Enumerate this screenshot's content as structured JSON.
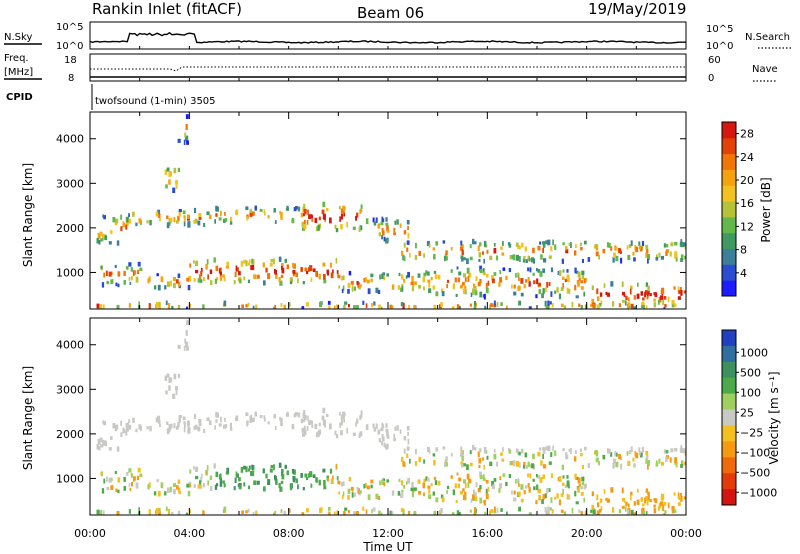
{
  "header": {
    "station": "Rankin Inlet (fitACF)",
    "beam": "Beam 06",
    "date": "19/May/2019"
  },
  "top_panels": {
    "nsky_label": "N.Sky",
    "nsearch_label": "N.Search",
    "exp_top": "10^5",
    "exp_bottom": "10^0",
    "freq_label": "Freq.",
    "mhz_label": "[MHz]",
    "freq_ticks": [
      "18",
      "8"
    ],
    "nave_label": "Nave",
    "nave_ticks": [
      "60",
      "0"
    ],
    "cpid_label": "CPID",
    "cpid_text": "twofsound (1-min) 3505"
  },
  "chart_data": [
    {
      "type": "heatmap",
      "title": "",
      "quantity": "Power",
      "xlabel": "Time UT",
      "ylabel": "Slant Range [km]",
      "x_ticks": [
        "00:00",
        "04:00",
        "08:00",
        "12:00",
        "16:00",
        "20:00",
        "00:00"
      ],
      "xlim_hours": [
        0,
        24
      ],
      "y_ticks": [
        1000,
        2000,
        3000,
        4000
      ],
      "ylim": [
        180,
        4600
      ],
      "colorbar": {
        "label": "Power [dB]",
        "ticks": [
          4,
          8,
          12,
          16,
          20,
          24,
          28
        ],
        "range": [
          0,
          30
        ],
        "colors": [
          "#1c1cff",
          "#2a4cd0",
          "#3c7f9a",
          "#3e9a5f",
          "#62b94a",
          "#b6c238",
          "#f2c21e",
          "#f5a20f",
          "#f07608",
          "#e34206",
          "#d4180e"
        ]
      }
    },
    {
      "type": "heatmap",
      "title": "",
      "quantity": "Velocity",
      "xlabel": "Time UT",
      "ylabel": "Slant Range [km]",
      "x_ticks": [
        "00:00",
        "04:00",
        "08:00",
        "12:00",
        "16:00",
        "20:00",
        "00:00"
      ],
      "xlim_hours": [
        0,
        24
      ],
      "y_ticks": [
        1000,
        2000,
        3000,
        4000
      ],
      "ylim": [
        180,
        4600
      ],
      "colorbar": {
        "label": "Velocity [m s⁻¹]",
        "ticks": [
          "1000",
          "500",
          "100",
          "25",
          "−25",
          "−100",
          "−500",
          "−1000"
        ],
        "colors": [
          "#2040c0",
          "#2e6fa0",
          "#3e9060",
          "#4caa4a",
          "#9ed060",
          "#c8c8c4",
          "#f4c020",
          "#f59a12",
          "#f06a0c",
          "#e53a0a",
          "#d4140e"
        ]
      }
    }
  ],
  "data_regions": [
    {
      "t0": 0.2,
      "t1": 1.6,
      "r0": 1650,
      "r1": 2300
    },
    {
      "t0": 1.6,
      "t1": 5.0,
      "r0": 2050,
      "r1": 2400
    },
    {
      "t0": 5.0,
      "t1": 8.5,
      "r0": 2100,
      "r1": 2450
    },
    {
      "t0": 8.5,
      "t1": 11.0,
      "r0": 1950,
      "r1": 2550
    },
    {
      "t0": 11.0,
      "t1": 12.8,
      "r0": 1700,
      "r1": 2200
    },
    {
      "t0": 12.5,
      "t1": 24.0,
      "r0": 1250,
      "r1": 1700
    },
    {
      "t0": 0.2,
      "t1": 2.0,
      "r0": 700,
      "r1": 1200
    },
    {
      "t0": 2.0,
      "t1": 4.0,
      "r0": 650,
      "r1": 950
    },
    {
      "t0": 4.0,
      "t1": 10.0,
      "r0": 750,
      "r1": 1300
    },
    {
      "t0": 10.0,
      "t1": 13.5,
      "r0": 550,
      "r1": 1000
    },
    {
      "t0": 13.5,
      "t1": 20.0,
      "r0": 450,
      "r1": 1100
    },
    {
      "t0": 20.0,
      "t1": 24.0,
      "r0": 250,
      "r1": 750
    },
    {
      "t0": 3.0,
      "t1": 3.6,
      "r0": 2800,
      "r1": 3400
    },
    {
      "t0": 3.5,
      "t1": 3.9,
      "r0": 3900,
      "r1": 4500
    },
    {
      "t0": 0.0,
      "t1": 24.0,
      "r0": 180,
      "r1": 320
    }
  ]
}
